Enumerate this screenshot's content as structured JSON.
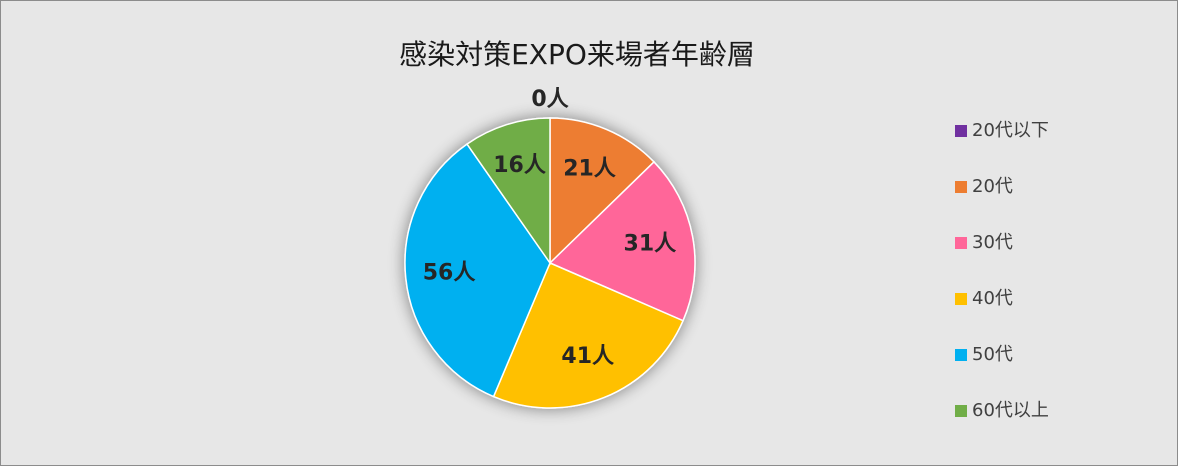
{
  "chart_data": {
    "type": "pie",
    "title": "感染対策EXPO来場者年齢層",
    "categories": [
      "20代以下",
      "20代",
      "30代",
      "40代",
      "50代",
      "60代以上"
    ],
    "values": [
      0,
      21,
      31,
      41,
      56,
      16
    ],
    "value_labels": [
      "0人",
      "21人",
      "31人",
      "41人",
      "56人",
      "16人"
    ],
    "colors": [
      "#7030a0",
      "#ed7d31",
      "#ff6699",
      "#ffc000",
      "#00b0f0",
      "#70ad47"
    ],
    "legend": "right"
  }
}
